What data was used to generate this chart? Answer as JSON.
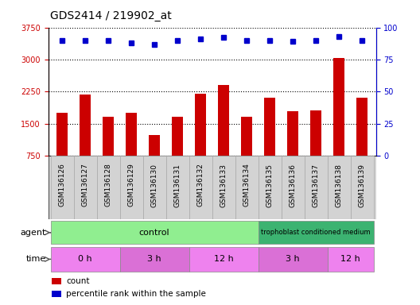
{
  "title": "GDS2414 / 219902_at",
  "samples": [
    "GSM136126",
    "GSM136127",
    "GSM136128",
    "GSM136129",
    "GSM136130",
    "GSM136131",
    "GSM136132",
    "GSM136133",
    "GSM136134",
    "GSM136135",
    "GSM136136",
    "GSM136137",
    "GSM136138",
    "GSM136139"
  ],
  "counts": [
    1750,
    2180,
    1650,
    1750,
    1230,
    1650,
    2200,
    2400,
    1650,
    2100,
    1780,
    1800,
    3030,
    2100
  ],
  "percentile_ranks": [
    90,
    90,
    90,
    88,
    87,
    90,
    91,
    92,
    90,
    90,
    89,
    90,
    93,
    90
  ],
  "bar_color": "#cc0000",
  "dot_color": "#0000cc",
  "ylim_left": [
    750,
    3750
  ],
  "yticks_left": [
    750,
    1500,
    2250,
    3000,
    3750
  ],
  "ylim_right": [
    0,
    100
  ],
  "yticks_right": [
    0,
    25,
    50,
    75,
    100
  ],
  "background_color": "#ffffff",
  "gridline_color": "#000000",
  "bar_width": 0.5,
  "left_axis_color": "#cc0000",
  "right_axis_color": "#0000cc",
  "sample_bg_color": "#d3d3d3",
  "agent_control_color": "#90ee90",
  "agent_troph_color": "#3cb371",
  "time_color_1": "#ee82ee",
  "time_color_2": "#da70d6",
  "title_fontsize": 10,
  "tick_fontsize": 7,
  "row_fontsize": 8
}
